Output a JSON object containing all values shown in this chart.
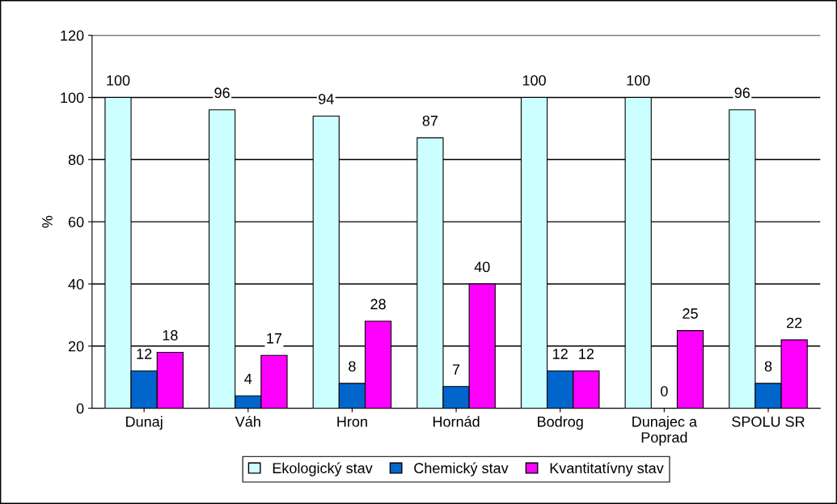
{
  "chart_data": {
    "type": "bar",
    "ylabel": "%",
    "categories": [
      "Dunaj",
      "Váh",
      "Hron",
      "Hornád",
      "Bodrog",
      "Dunajec a\nPoprad",
      "SPOLU SR"
    ],
    "series": [
      {
        "name": "Ekologický stav",
        "color": "#ccffff",
        "values": [
          100,
          96,
          94,
          87,
          100,
          100,
          96
        ]
      },
      {
        "name": "Chemický stav",
        "color": "#0066cc",
        "values": [
          12,
          4,
          8,
          7,
          12,
          0,
          8
        ]
      },
      {
        "name": "Kvantitatívny stav",
        "color": "#ff00ff",
        "values": [
          18,
          17,
          28,
          40,
          12,
          25,
          22
        ]
      }
    ],
    "ylim": [
      0,
      120
    ],
    "yticks": [
      0,
      20,
      40,
      60,
      80,
      100,
      120
    ],
    "grid": "y",
    "legend": "bottom",
    "data_labels": true
  }
}
